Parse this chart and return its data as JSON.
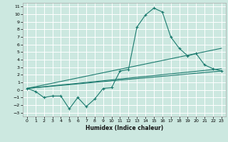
{
  "xlabel": "Humidex (Indice chaleur)",
  "bg_color": "#cce8e0",
  "grid_color": "#ffffff",
  "line_color": "#1a7a6e",
  "xlim": [
    -0.5,
    23.5
  ],
  "ylim": [
    -3.5,
    11.5
  ],
  "xticks": [
    0,
    1,
    2,
    3,
    4,
    5,
    6,
    7,
    8,
    9,
    10,
    11,
    12,
    13,
    14,
    15,
    16,
    17,
    18,
    19,
    20,
    21,
    22,
    23
  ],
  "yticks": [
    -3,
    -2,
    -1,
    0,
    1,
    2,
    3,
    4,
    5,
    6,
    7,
    8,
    9,
    10,
    11
  ],
  "curve1_x": [
    0,
    1,
    2,
    3,
    4,
    5,
    6,
    7,
    8,
    9,
    10,
    11,
    12,
    13,
    14,
    15,
    16,
    17,
    18,
    19,
    20,
    21,
    22,
    23
  ],
  "curve1_y": [
    0.2,
    -0.2,
    -1.0,
    -0.8,
    -0.8,
    -2.5,
    -1.0,
    -2.2,
    -1.2,
    0.2,
    0.3,
    2.5,
    2.7,
    8.3,
    9.9,
    10.8,
    10.3,
    7.0,
    5.5,
    4.5,
    4.8,
    3.3,
    2.8,
    2.5
  ],
  "line2_x": [
    0,
    23
  ],
  "line2_y": [
    0.2,
    2.5
  ],
  "line3_x": [
    0,
    23
  ],
  "line3_y": [
    0.2,
    5.5
  ],
  "line4_x": [
    0,
    23
  ],
  "line4_y": [
    0.2,
    2.8
  ]
}
